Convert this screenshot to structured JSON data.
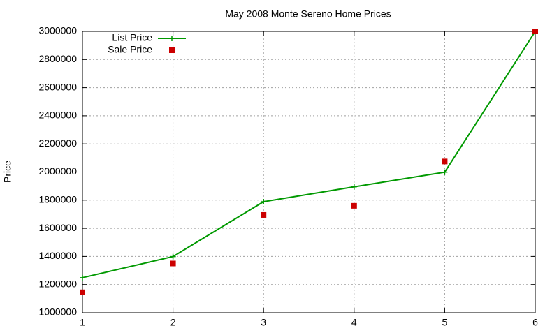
{
  "chart_data": {
    "type": "line",
    "title": "May 2008 Monte Sereno Home Prices",
    "ylabel": "Price",
    "x": [
      1,
      2,
      3,
      4,
      5,
      6
    ],
    "series": [
      {
        "name": "List Price",
        "color": "#009900",
        "mode": "linespoints",
        "values": [
          1249000,
          1399000,
          1789000,
          1895000,
          1999000,
          3000000
        ]
      },
      {
        "name": "Sale Price",
        "color": "#cc0000",
        "mode": "points",
        "values": [
          1145000,
          1350000,
          1695000,
          1760000,
          2075000,
          3000000
        ]
      }
    ],
    "xlim": [
      1,
      6
    ],
    "xticks": [
      1,
      2,
      3,
      4,
      5,
      6
    ],
    "ylim": [
      1000000,
      3000000
    ],
    "yticks": [
      1000000,
      1200000,
      1400000,
      1600000,
      1800000,
      2000000,
      2200000,
      2400000,
      2600000,
      2800000,
      3000000
    ],
    "grid": true,
    "legend": "top-left"
  }
}
